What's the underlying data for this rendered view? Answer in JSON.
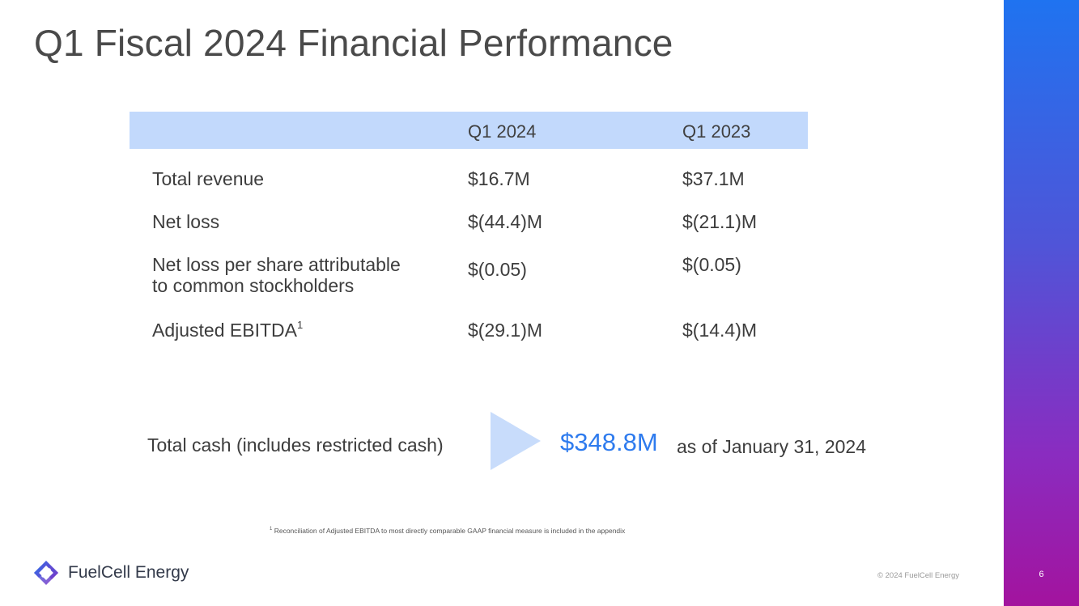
{
  "title": "Q1 Fiscal 2024 Financial Performance",
  "table": {
    "columns": [
      "Q1 2024",
      "Q1 2023"
    ],
    "rows": [
      {
        "label": "Total revenue",
        "label2": "",
        "sup": "",
        "q1_2024": "$16.7M",
        "q1_2023": "$37.1M"
      },
      {
        "label": "Net loss",
        "label2": "",
        "sup": "",
        "q1_2024": "$(44.4)M",
        "q1_2023": "$(21.1)M"
      },
      {
        "label": "Net loss per share attributable",
        "label2": "to common stockholders",
        "sup": "",
        "q1_2024": "$(0.05)",
        "q1_2023": "$(0.05)"
      },
      {
        "label": "Adjusted EBITDA",
        "label2": "",
        "sup": "1",
        "q1_2024": "$(29.1)M",
        "q1_2023": "$(14.4)M"
      }
    ]
  },
  "cash": {
    "label": "Total cash (includes restricted cash)",
    "value": "$348.8M",
    "as_of": "as of January 31, 2024"
  },
  "footnote": {
    "marker": "1",
    "text": "Reconciliation of Adjusted EBITDA to most directly comparable GAAP financial measure is included in the appendix"
  },
  "footer": {
    "logo_text": "FuelCell Energy",
    "copyright": "© 2024 FuelCell Energy",
    "page_number": "6"
  },
  "colors": {
    "accent_blue": "#2e7bee",
    "header_fill": "#c2d9fc",
    "sidebar_top": "#1f73f0",
    "sidebar_bottom": "#a3139e"
  }
}
